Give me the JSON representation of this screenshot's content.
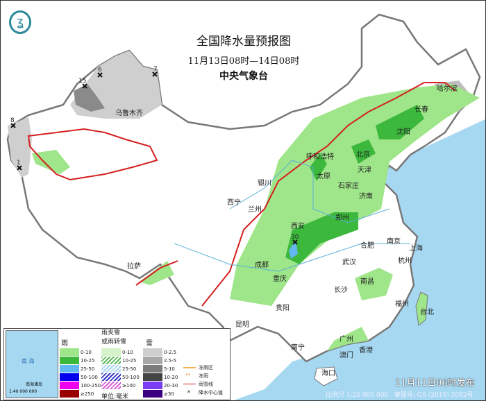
{
  "header": {
    "title": "全国降水量预报图",
    "period": "11月13日08时—14日08时",
    "issuer": "中央气象台"
  },
  "logo": {
    "icon": "cma-logo-icon"
  },
  "cities": [
    "乌鲁木齐",
    "哈尔滨",
    "长春",
    "沈阳",
    "北京",
    "天津",
    "呼和浩特",
    "石家庄",
    "太原",
    "济南",
    "银川",
    "西宁",
    "兰州",
    "郑州",
    "西安",
    "合肥",
    "南京",
    "上海",
    "武汉",
    "杭州",
    "成都",
    "重庆",
    "长沙",
    "南昌",
    "福州",
    "台北",
    "贵阳",
    "昆明",
    "拉萨",
    "南宁",
    "广州",
    "香港",
    "澳门",
    "海口"
  ],
  "precip_centers": [
    "15",
    "6",
    "7",
    "8",
    "1",
    "30"
  ],
  "legend": {
    "rain": {
      "title": "雨",
      "bins": [
        "0-10",
        "10-25",
        "25-50",
        "50-100",
        "100-250",
        "≥250"
      ],
      "colors": [
        "#9fe58a",
        "#3cb83c",
        "#62b8f0",
        "#0000ee",
        "#f000f0",
        "#990000"
      ]
    },
    "mixed": {
      "title": "雨夹雪\n或雨转雪",
      "bins": [
        "0-10",
        "10-25",
        "25-50",
        "50-100",
        "≥100"
      ],
      "colors": [
        "#d6f2c8",
        "#5cbb5c",
        "#a8d4f0",
        "#3838c8",
        "#d860d8"
      ]
    },
    "snow": {
      "title": "雪",
      "bins": [
        "0-2.5",
        "2.5-5",
        "5-10",
        "10-20",
        "20-30",
        "≥30"
      ],
      "colors": [
        "#cfcfcf",
        "#a8a8a8",
        "#7c7c7c",
        "#444444",
        "#7a3cf0",
        "#3a0080"
      ]
    },
    "unit": "单位:毫米",
    "freezing_rain_area": "冻雨区",
    "freezing_rain": "冻雨",
    "rain_snow_line": "雨雪线",
    "center_value": "降水中心值",
    "inset_label": "南海诸岛",
    "inset_scale": "1:40 000 000",
    "inset_sea": "南 海"
  },
  "footer": {
    "issued": "11月11日06时发布",
    "scale": "比例尺 1:20 000 000",
    "approval": "审图号: GS (2019) 3082号"
  },
  "colors": {
    "ocean": "#a6d8f2",
    "land": "#ffffff",
    "border": "#777777",
    "rain_snow_line": "#d42020"
  }
}
